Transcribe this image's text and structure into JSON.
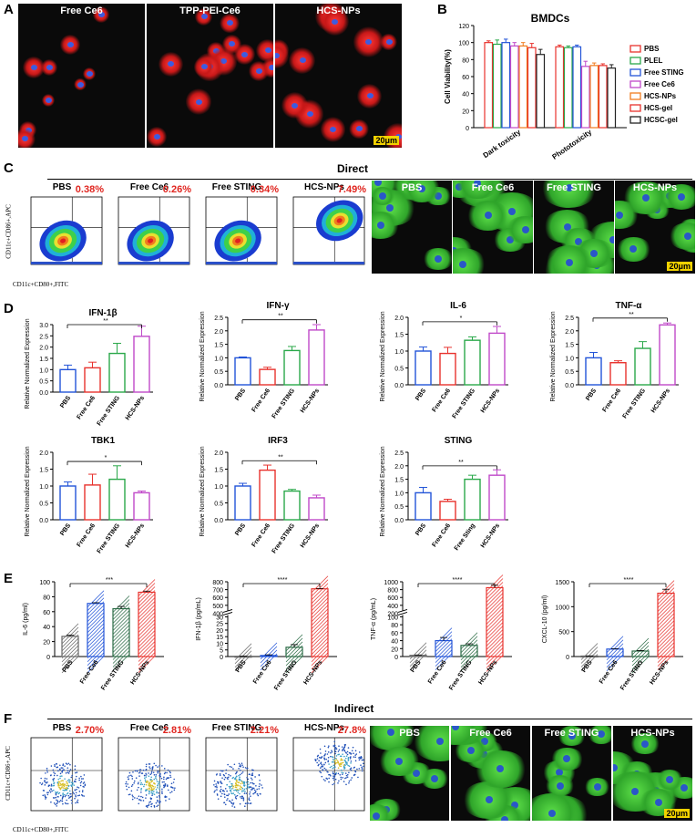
{
  "panels": {
    "A": {
      "label": "A",
      "images": [
        "Free Ce6",
        "TPP-PEI-Ce6",
        "HCS-NPs"
      ],
      "scale_bar": "20μm"
    },
    "B": {
      "label": "B",
      "chart_data": {
        "type": "bar",
        "title": "BMDCs",
        "ylabel": "Cell Viability(%)",
        "categories": [
          "Dark toxicity",
          "Phototoxicity"
        ],
        "ylim": [
          0,
          120
        ],
        "yticks": [
          0,
          20,
          40,
          60,
          80,
          100,
          120
        ],
        "series": [
          {
            "name": "PBS",
            "values": [
              100,
              95
            ],
            "errors": [
              2,
              2
            ],
            "color": "#e8322d"
          },
          {
            "name": "PLEL",
            "values": [
              98,
              94
            ],
            "errors": [
              5,
              2
            ],
            "color": "#2aa84a"
          },
          {
            "name": "Free STING",
            "values": [
              100,
              95
            ],
            "errors": [
              4,
              2
            ],
            "color": "#2254d8"
          },
          {
            "name": "Free Ce6",
            "values": [
              96,
              72
            ],
            "errors": [
              4,
              6
            ],
            "color": "#c049c9"
          },
          {
            "name": "HCS-NPs",
            "values": [
              96,
              73
            ],
            "errors": [
              4,
              3
            ],
            "color": "#f07c1f"
          },
          {
            "name": "HCS-gel",
            "values": [
              94,
              73
            ],
            "errors": [
              5,
              2
            ],
            "color": "#e8322d"
          },
          {
            "name": "HCSC-gel",
            "values": [
              86,
              70
            ],
            "errors": [
              6,
              4
            ],
            "color": "#222222"
          }
        ]
      }
    },
    "C": {
      "label": "C",
      "section": "Direct",
      "flow": [
        {
          "title": "PBS",
          "pct": "0.38%"
        },
        {
          "title": "Free Ce6",
          "pct": "0.26%"
        },
        {
          "title": "Free STING",
          "pct": "0.34%"
        },
        {
          "title": "HCS-NPs",
          "pct": "7.49%"
        }
      ],
      "images": [
        "PBS",
        "Free Ce6",
        "Free STING",
        "HCS-NPs"
      ],
      "scale_bar": "20μm",
      "yaxis": "CD11c+CD86+,APC",
      "xaxis": "CD11c+CD80+,FITC"
    },
    "D": {
      "label": "D",
      "ylabel": "Relative Normalized Expression",
      "charts": [
        {
          "type": "bar",
          "title": "IFN-1β",
          "categories": [
            "PBS",
            "Free Ce6",
            "Free STING",
            "HCS-NPs"
          ],
          "values": [
            1.0,
            1.08,
            1.72,
            2.48
          ],
          "errors": [
            0.2,
            0.25,
            0.45,
            0.45
          ],
          "ylim": [
            0,
            3.0
          ],
          "yticks": [
            "0.0",
            "0.5",
            "1.0",
            "1.5",
            "2.0",
            "2.5",
            "3.0"
          ],
          "sig": "**"
        },
        {
          "type": "bar",
          "title": "IFN-γ",
          "categories": [
            "PBS",
            "Free Ce6",
            "Free STING",
            "HCS-NPs"
          ],
          "values": [
            1.0,
            0.57,
            1.27,
            2.03
          ],
          "errors": [
            0.03,
            0.08,
            0.15,
            0.2
          ],
          "ylim": [
            0,
            2.5
          ],
          "yticks": [
            "0.0",
            "0.5",
            "1.0",
            "1.5",
            "2.0",
            "2.5"
          ],
          "sig": "**"
        },
        {
          "type": "bar",
          "title": "IL-6",
          "categories": [
            "PBS",
            "Free Ce6",
            "Free STING",
            "HCS-NPs"
          ],
          "values": [
            1.0,
            0.93,
            1.32,
            1.53
          ],
          "errors": [
            0.12,
            0.18,
            0.1,
            0.2
          ],
          "ylim": [
            0,
            2.0
          ],
          "yticks": [
            "0.0",
            "0.5",
            "1.0",
            "1.5",
            "2.0"
          ],
          "sig": "*"
        },
        {
          "type": "bar",
          "title": "TNF-α",
          "categories": [
            "PBS",
            "Free Ce6",
            "Free STING",
            "HCS-NPs"
          ],
          "values": [
            1.0,
            0.82,
            1.35,
            2.22
          ],
          "errors": [
            0.2,
            0.07,
            0.25,
            0.07
          ],
          "ylim": [
            0,
            2.5
          ],
          "yticks": [
            "0.0",
            "0.5",
            "1.0",
            "1.5",
            "2.0",
            "2.5"
          ],
          "sig": "**"
        },
        {
          "type": "bar",
          "title": "TBK1",
          "categories": [
            "PBS",
            "Free Ce6",
            "Free STING",
            "HCS-NPs"
          ],
          "values": [
            1.0,
            1.03,
            1.2,
            0.8
          ],
          "errors": [
            0.12,
            0.32,
            0.4,
            0.05
          ],
          "ylim": [
            0,
            2.0
          ],
          "yticks": [
            "0.0",
            "0.5",
            "1.0",
            "1.5",
            "2.0"
          ],
          "sig": "*"
        },
        {
          "type": "bar",
          "title": "IRF3",
          "categories": [
            "PBS",
            "Free Ce6",
            "Free STING",
            "HCS-NPs"
          ],
          "values": [
            1.0,
            1.47,
            0.85,
            0.65
          ],
          "errors": [
            0.08,
            0.15,
            0.05,
            0.08
          ],
          "ylim": [
            0,
            2.0
          ],
          "yticks": [
            "0.0",
            "0.5",
            "1.0",
            "1.5",
            "2.0"
          ],
          "sig": "**"
        },
        {
          "type": "bar",
          "title": "STING",
          "categories": [
            "PBS",
            "Free Ce6",
            "Free Sting",
            "HCS-NPs"
          ],
          "values": [
            1.0,
            0.68,
            1.5,
            1.65
          ],
          "errors": [
            0.2,
            0.08,
            0.15,
            0.2
          ],
          "ylim": [
            0,
            2.5
          ],
          "yticks": [
            "0.0",
            "0.5",
            "1.0",
            "1.5",
            "2.0",
            "2.5"
          ],
          "sig": "**"
        }
      ]
    },
    "E": {
      "label": "E",
      "charts": [
        {
          "type": "bar",
          "ylabel": "IL-6 (pg/ml)",
          "categories": [
            "PBS",
            "Free Ce6",
            "Free STING",
            "HCS-NPs"
          ],
          "values": [
            27,
            71,
            64,
            86
          ],
          "errors": [
            1.5,
            1,
            3,
            1.5
          ],
          "ylim": [
            0,
            100
          ],
          "yticks": [
            "0",
            "20",
            "40",
            "60",
            "80",
            "100"
          ],
          "sig": "***"
        },
        {
          "type": "bar",
          "ylabel": "IFN-1β (pg/mL)",
          "categories": [
            "PBS",
            "Free Ce6",
            "Free STING",
            "HCS-NPs"
          ],
          "values": [
            0.2,
            0.8,
            7,
            710
          ],
          "errors": [
            0.1,
            0.5,
            2,
            5
          ],
          "yticks_lower": [
            "0",
            "5",
            "10",
            "15",
            "20",
            "25",
            "30"
          ],
          "yticks_upper": [
            "400",
            "500",
            "600",
            "700",
            "800"
          ],
          "axis_break": true,
          "sig": "****"
        },
        {
          "type": "bar",
          "ylabel": "TNF-α (pg/mL)",
          "categories": [
            "PBS",
            "Free Ce6",
            "Free STING",
            "HCS-NPs"
          ],
          "values": [
            3,
            40,
            28,
            850
          ],
          "errors": [
            1,
            8,
            4,
            60
          ],
          "yticks_lower": [
            "0",
            "20",
            "40",
            "60",
            "80",
            "100"
          ],
          "yticks_upper": [
            "200",
            "400",
            "600",
            "800",
            "1000"
          ],
          "axis_break": true,
          "sig": "****"
        },
        {
          "type": "bar",
          "ylabel": "CXCL-10 (pg/ml)",
          "categories": [
            "PBS",
            "Free Ce6",
            "Free STING",
            "HCS-NPs"
          ],
          "values": [
            10,
            150,
            110,
            1270
          ],
          "errors": [
            3,
            8,
            10,
            80
          ],
          "ylim": [
            0,
            1500
          ],
          "yticks": [
            "0",
            "500",
            "1000",
            "1500"
          ],
          "sig": "****"
        }
      ]
    },
    "F": {
      "label": "F",
      "section": "Indirect",
      "flow": [
        {
          "title": "PBS",
          "pct": "2.70%"
        },
        {
          "title": "Free Ce6",
          "pct": "2.81%"
        },
        {
          "title": "Free STING",
          "pct": "2.21%"
        },
        {
          "title": "HCS-NPs",
          "pct": "27.8%"
        }
      ],
      "images": [
        "PBS",
        "Free Ce6",
        "Free STING",
        "HCS-NPs"
      ],
      "scale_bar": "20μm",
      "yaxis": "CD11c+CD86+,APC",
      "xaxis": "CD11c+CD80+,FITC"
    }
  },
  "colors": {
    "d_bars": [
      "#2254d8",
      "#e8322d",
      "#2aa84a",
      "#c049c9"
    ],
    "e_bars": [
      "#666666",
      "#2254d8",
      "#2a6b45",
      "#e8322d"
    ]
  }
}
